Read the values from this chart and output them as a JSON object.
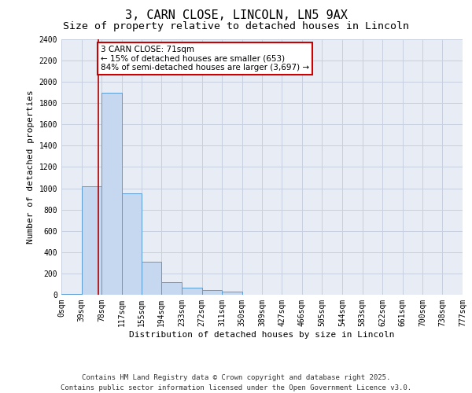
{
  "title": "3, CARN CLOSE, LINCOLN, LN5 9AX",
  "subtitle": "Size of property relative to detached houses in Lincoln",
  "xlabel": "Distribution of detached houses by size in Lincoln",
  "ylabel": "Number of detached properties",
  "bar_edges": [
    0,
    39,
    78,
    117,
    155,
    194,
    233,
    272,
    311,
    350,
    389,
    427,
    466,
    505,
    544,
    583,
    622,
    661,
    700,
    738,
    777
  ],
  "bar_heights": [
    8,
    1020,
    1900,
    950,
    310,
    120,
    70,
    45,
    30,
    0,
    0,
    0,
    0,
    0,
    0,
    0,
    0,
    0,
    0,
    0
  ],
  "bar_color": "#c5d8f0",
  "bar_edge_color": "#5b9bd5",
  "property_line_x": 71,
  "property_line_color": "#aa0000",
  "annotation_text": "3 CARN CLOSE: 71sqm\n← 15% of detached houses are smaller (653)\n84% of semi-detached houses are larger (3,697) →",
  "annotation_box_color": "white",
  "annotation_box_edge": "#cc0000",
  "ylim": [
    0,
    2400
  ],
  "yticks": [
    0,
    200,
    400,
    600,
    800,
    1000,
    1200,
    1400,
    1600,
    1800,
    2000,
    2200,
    2400
  ],
  "tick_labels": [
    "0sqm",
    "39sqm",
    "78sqm",
    "117sqm",
    "155sqm",
    "194sqm",
    "233sqm",
    "272sqm",
    "311sqm",
    "350sqm",
    "389sqm",
    "427sqm",
    "466sqm",
    "505sqm",
    "544sqm",
    "583sqm",
    "622sqm",
    "661sqm",
    "700sqm",
    "738sqm",
    "777sqm"
  ],
  "grid_color": "#c8d0e0",
  "background_color": "#e8edf5",
  "footer_text": "Contains HM Land Registry data © Crown copyright and database right 2025.\nContains public sector information licensed under the Open Government Licence v3.0.",
  "title_fontsize": 11,
  "subtitle_fontsize": 9.5,
  "label_fontsize": 8,
  "tick_fontsize": 7,
  "annot_fontsize": 7.5,
  "footer_fontsize": 6.5
}
